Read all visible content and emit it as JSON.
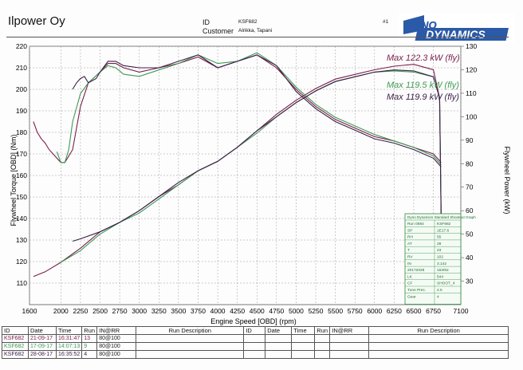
{
  "header": {
    "company": "Ilpower Oy",
    "id_label": "ID",
    "id_value": "KSF682",
    "customer_label": "Customer",
    "customer_value": "Alrikka, Tapani",
    "run_hash": "#1",
    "logo_top": "DYNO",
    "logo_bottom": "DYNAMICS"
  },
  "colors": {
    "run1": "#7a1f4a",
    "run2": "#3f9a55",
    "run3": "#3a1f48",
    "grid": "#9a9a9a"
  },
  "chart_data": {
    "type": "line",
    "xlabel": "Engine Speed [OBD] (rpm)",
    "ylabel_left": "Flywheel Torque [OBD] (Nm)",
    "ylabel_right": "Flywheel Power (kW)",
    "xlim": [
      1600,
      7100
    ],
    "ylim_left": [
      100,
      220
    ],
    "ylim_right": [
      20,
      130
    ],
    "x_ticks": [
      1600,
      2000,
      2250,
      2500,
      2750,
      3000,
      3250,
      3500,
      3750,
      4000,
      4250,
      4500,
      4750,
      5000,
      5250,
      5500,
      5750,
      6000,
      6250,
      6500,
      6750,
      7100
    ],
    "left_ticks": [
      110,
      120,
      130,
      140,
      150,
      160,
      170,
      180,
      190,
      200,
      210,
      220
    ],
    "right_ticks": [
      30,
      40,
      50,
      60,
      70,
      80,
      90,
      100,
      110,
      120,
      130
    ],
    "grid": true,
    "series": [
      {
        "name": "KSF682 21-09-17 16:31:47",
        "axis_torque": {
          "x": [
            1650,
            1700,
            1750,
            1800,
            1850,
            1900,
            1950,
            2000,
            2050,
            2150,
            2250,
            2350,
            2500,
            2600,
            2700,
            2800,
            3000,
            3250,
            3500,
            3750,
            4000,
            4250,
            4500,
            4750,
            5000,
            5250,
            5500,
            5750,
            6000,
            6250,
            6500,
            6750,
            6850
          ],
          "y": [
            185,
            180,
            177,
            175,
            172,
            170,
            168,
            166,
            166,
            172,
            192,
            203,
            208,
            212,
            212,
            210,
            208,
            210,
            212,
            215,
            210,
            213,
            216,
            210,
            200,
            192,
            186,
            182,
            178,
            176,
            173,
            170,
            166
          ]
        },
        "axis_power": {
          "x": [
            1650,
            1800,
            2000,
            2250,
            2500,
            2750,
            3000,
            3250,
            3500,
            3750,
            4000,
            4250,
            4500,
            4750,
            5000,
            5250,
            5500,
            5750,
            6000,
            6250,
            6500,
            6750,
            6830,
            6850
          ],
          "y": [
            32,
            34,
            38,
            44,
            51,
            55,
            60,
            66,
            71,
            77,
            81,
            87,
            94,
            101,
            107,
            112,
            116,
            118,
            120,
            121.5,
            122.3,
            120,
            108,
            55
          ]
        },
        "max_power_label": "Max 122.3 kW (fly)"
      },
      {
        "name": "KSF682 17-09-17 14:07:13",
        "axis_torque": {
          "x": [
            1950,
            2000,
            2050,
            2100,
            2150,
            2250,
            2350,
            2500,
            2600,
            2700,
            2800,
            3000,
            3250,
            3500,
            3750,
            4000,
            4250,
            4500,
            4750,
            5000,
            5250,
            5500,
            5750,
            6000,
            6250,
            6500,
            6750,
            6850
          ],
          "y": [
            171,
            166,
            166,
            172,
            185,
            198,
            203,
            208,
            211,
            210,
            207,
            206,
            209,
            212,
            216,
            212,
            213,
            217,
            211,
            201,
            193,
            187,
            183,
            179,
            176,
            173,
            169,
            165
          ]
        },
        "axis_power": {
          "x": [
            2000,
            2250,
            2500,
            2750,
            3000,
            3250,
            3500,
            3750,
            4000,
            4250,
            4500,
            4750,
            5000,
            5250,
            5500,
            5750,
            6000,
            6250,
            6500,
            6750,
            6830,
            6850
          ],
          "y": [
            38,
            43,
            50,
            55,
            59,
            65,
            71,
            77,
            81,
            87,
            93,
            100,
            106,
            111,
            115,
            117,
            119,
            119.5,
            119,
            117,
            108,
            55
          ]
        },
        "max_power_label": "Max 119.5 kW (fly)"
      },
      {
        "name": "KSF682 28-08-17 16:35:52",
        "axis_torque": {
          "x": [
            2150,
            2200,
            2250,
            2300,
            2350,
            2450,
            2500,
            2600,
            2700,
            2800,
            3000,
            3250,
            3500,
            3750,
            4000,
            4250,
            4500,
            4750,
            5000,
            5250,
            5500,
            5750,
            6000,
            6250,
            6500,
            6750,
            6850
          ],
          "y": [
            200,
            203,
            205,
            206,
            203,
            205,
            208,
            213,
            213,
            211,
            210,
            210,
            213,
            216,
            210,
            213,
            216,
            211,
            199,
            191,
            185,
            181,
            177,
            175,
            172,
            168,
            164
          ]
        },
        "axis_power": {
          "x": [
            2150,
            2250,
            2500,
            2750,
            3000,
            3250,
            3500,
            3750,
            4000,
            4250,
            4500,
            4750,
            5000,
            5250,
            5500,
            5750,
            6000,
            6250,
            6500,
            6750,
            6830,
            6850
          ],
          "y": [
            47,
            48,
            51,
            55,
            60,
            66,
            72,
            77,
            81,
            87,
            94,
            100,
            106,
            111,
            115,
            117,
            119,
            119.9,
            119.5,
            117,
            108,
            55
          ]
        },
        "max_power_label": "Max 119.9 kW (fly)"
      }
    ]
  },
  "info_box": {
    "title": "Dyno Dynamics Standard Shootout Graph",
    "rows": [
      [
        "Run 0884",
        "KSF682"
      ],
      [
        "SP",
        "1E17.6"
      ],
      [
        "RH",
        "55"
      ],
      [
        "AT",
        "28"
      ],
      [
        "T",
        "23"
      ],
      [
        "RV",
        "102"
      ],
      [
        "IN",
        "3.142"
      ],
      [
        "20172028",
        "163/62"
      ],
      [
        "LK",
        "544"
      ],
      [
        "CF",
        "SHOOT_4"
      ],
      [
        "Tune Prec.",
        "2.5"
      ],
      [
        "Gear",
        "4"
      ]
    ]
  },
  "table": {
    "headers_left": [
      "ID",
      "Date",
      "Time",
      "Run",
      "IN@RR",
      "Run Description"
    ],
    "headers_right": [
      "ID",
      "Date",
      "Time",
      "Run",
      "IN@RR",
      "Run Description"
    ],
    "rows": [
      [
        "KSF682",
        "21-09-17",
        "16:31:47",
        "13",
        "80@100"
      ],
      [
        "KSF682",
        "17-09-17",
        "14:07:13",
        "9",
        "80@100"
      ],
      [
        "KSF682",
        "28-08-17",
        "16:35:52",
        "4",
        "80@100"
      ]
    ]
  }
}
